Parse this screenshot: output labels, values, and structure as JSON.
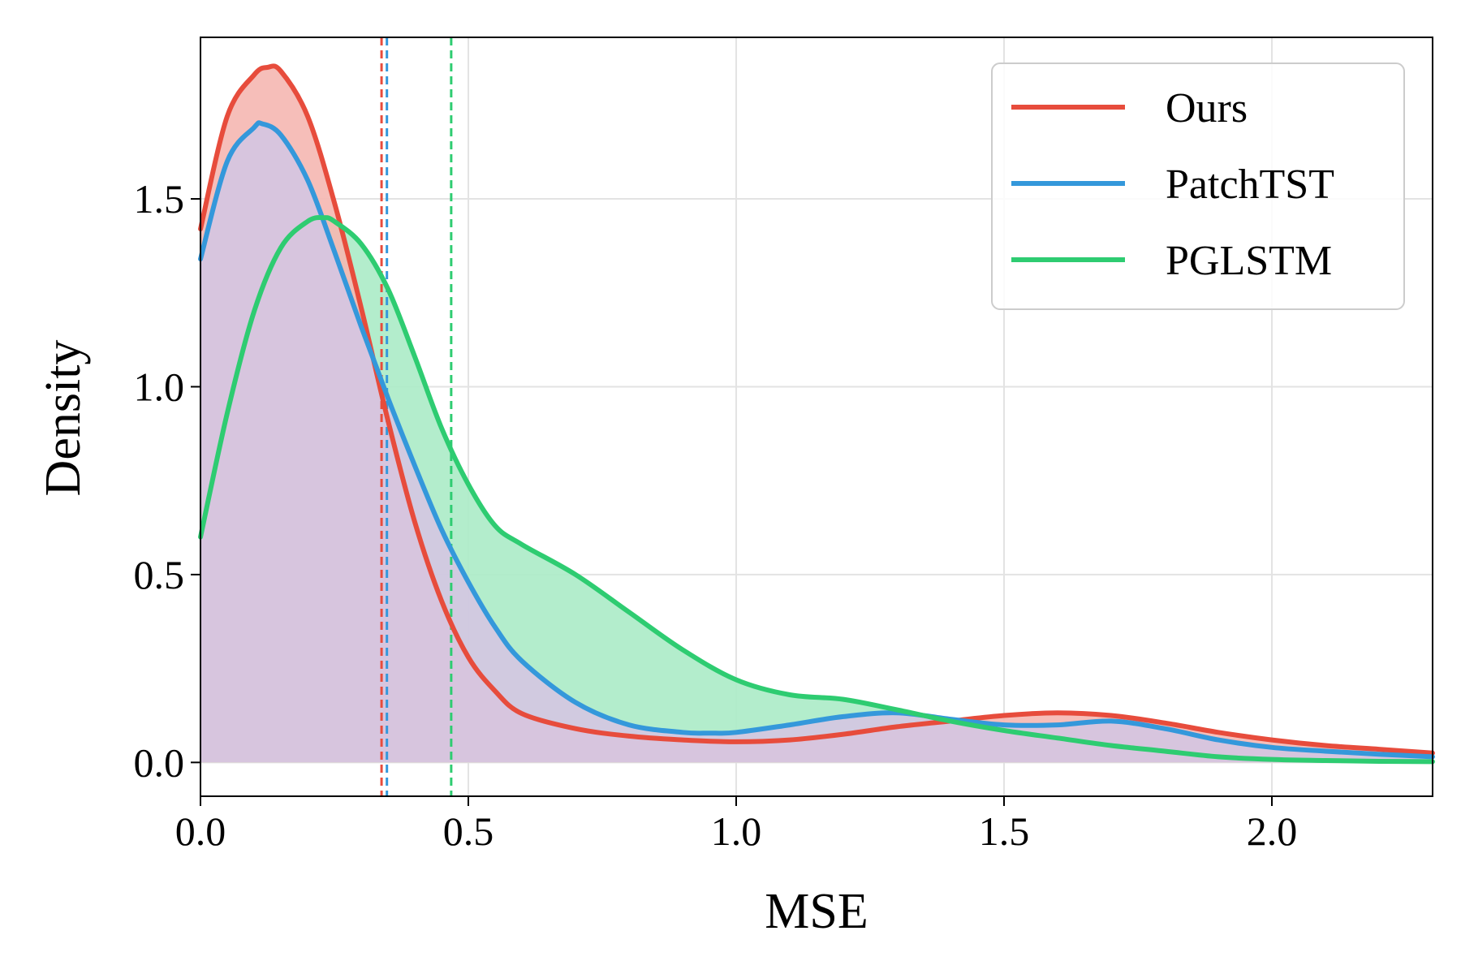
{
  "chart_data": {
    "type": "line",
    "title": "",
    "xlabel": "MSE",
    "ylabel": "Density",
    "xlim": [
      0.0,
      2.3
    ],
    "ylim": [
      -0.09,
      1.93
    ],
    "xticks": [
      0.0,
      0.5,
      1.0,
      1.5,
      2.0
    ],
    "xtick_labels": [
      "0.0",
      "0.5",
      "1.0",
      "1.5",
      "2.0"
    ],
    "yticks": [
      0.0,
      0.5,
      1.0,
      1.5
    ],
    "ytick_labels": [
      "0.0",
      "0.5",
      "1.0",
      "1.5"
    ],
    "grid": true,
    "legend_position": "upper right",
    "series": [
      {
        "name": "Ours",
        "color": "#e74c3c",
        "fill_color": "#f5b7b1",
        "mean": 0.338,
        "x": [
          0.0,
          0.05,
          0.1,
          0.125,
          0.15,
          0.2,
          0.25,
          0.3,
          0.35,
          0.4,
          0.45,
          0.5,
          0.55,
          0.6,
          0.7,
          0.8,
          0.9,
          1.0,
          1.1,
          1.2,
          1.3,
          1.4,
          1.5,
          1.6,
          1.7,
          1.8,
          1.9,
          2.0,
          2.1,
          2.2,
          2.3
        ],
        "y": [
          1.42,
          1.72,
          1.83,
          1.85,
          1.84,
          1.72,
          1.49,
          1.21,
          0.91,
          0.64,
          0.43,
          0.28,
          0.19,
          0.13,
          0.09,
          0.07,
          0.06,
          0.055,
          0.06,
          0.075,
          0.095,
          0.11,
          0.125,
          0.132,
          0.125,
          0.105,
          0.08,
          0.06,
          0.045,
          0.035,
          0.025
        ]
      },
      {
        "name": "PatchTST",
        "color": "#3498db",
        "fill_color": "#d4c5e2",
        "mean": 0.348,
        "x": [
          0.0,
          0.05,
          0.1,
          0.115,
          0.15,
          0.2,
          0.25,
          0.3,
          0.35,
          0.4,
          0.45,
          0.5,
          0.55,
          0.6,
          0.7,
          0.8,
          0.9,
          0.95,
          1.0,
          1.1,
          1.2,
          1.3,
          1.4,
          1.5,
          1.6,
          1.7,
          1.8,
          1.9,
          2.0,
          2.1,
          2.2,
          2.3
        ],
        "y": [
          1.34,
          1.6,
          1.69,
          1.7,
          1.67,
          1.55,
          1.36,
          1.16,
          0.97,
          0.79,
          0.62,
          0.48,
          0.36,
          0.27,
          0.16,
          0.1,
          0.08,
          0.078,
          0.08,
          0.1,
          0.122,
          0.132,
          0.115,
          0.1,
          0.1,
          0.11,
          0.09,
          0.06,
          0.04,
          0.03,
          0.022,
          0.015
        ]
      },
      {
        "name": "PGLSTM",
        "color": "#2ecc71",
        "fill_color": "#abebc6",
        "mean": 0.468,
        "x": [
          0.0,
          0.05,
          0.1,
          0.15,
          0.2,
          0.23,
          0.25,
          0.3,
          0.35,
          0.4,
          0.45,
          0.5,
          0.55,
          0.6,
          0.7,
          0.8,
          0.9,
          1.0,
          1.1,
          1.2,
          1.3,
          1.4,
          1.5,
          1.6,
          1.7,
          1.8,
          1.9,
          2.0,
          2.1,
          2.2,
          2.3
        ],
        "y": [
          0.6,
          0.93,
          1.2,
          1.37,
          1.44,
          1.45,
          1.44,
          1.38,
          1.26,
          1.08,
          0.89,
          0.74,
          0.63,
          0.58,
          0.5,
          0.4,
          0.3,
          0.22,
          0.18,
          0.168,
          0.14,
          0.11,
          0.085,
          0.065,
          0.045,
          0.03,
          0.015,
          0.008,
          0.005,
          0.003,
          0.002
        ]
      }
    ]
  }
}
